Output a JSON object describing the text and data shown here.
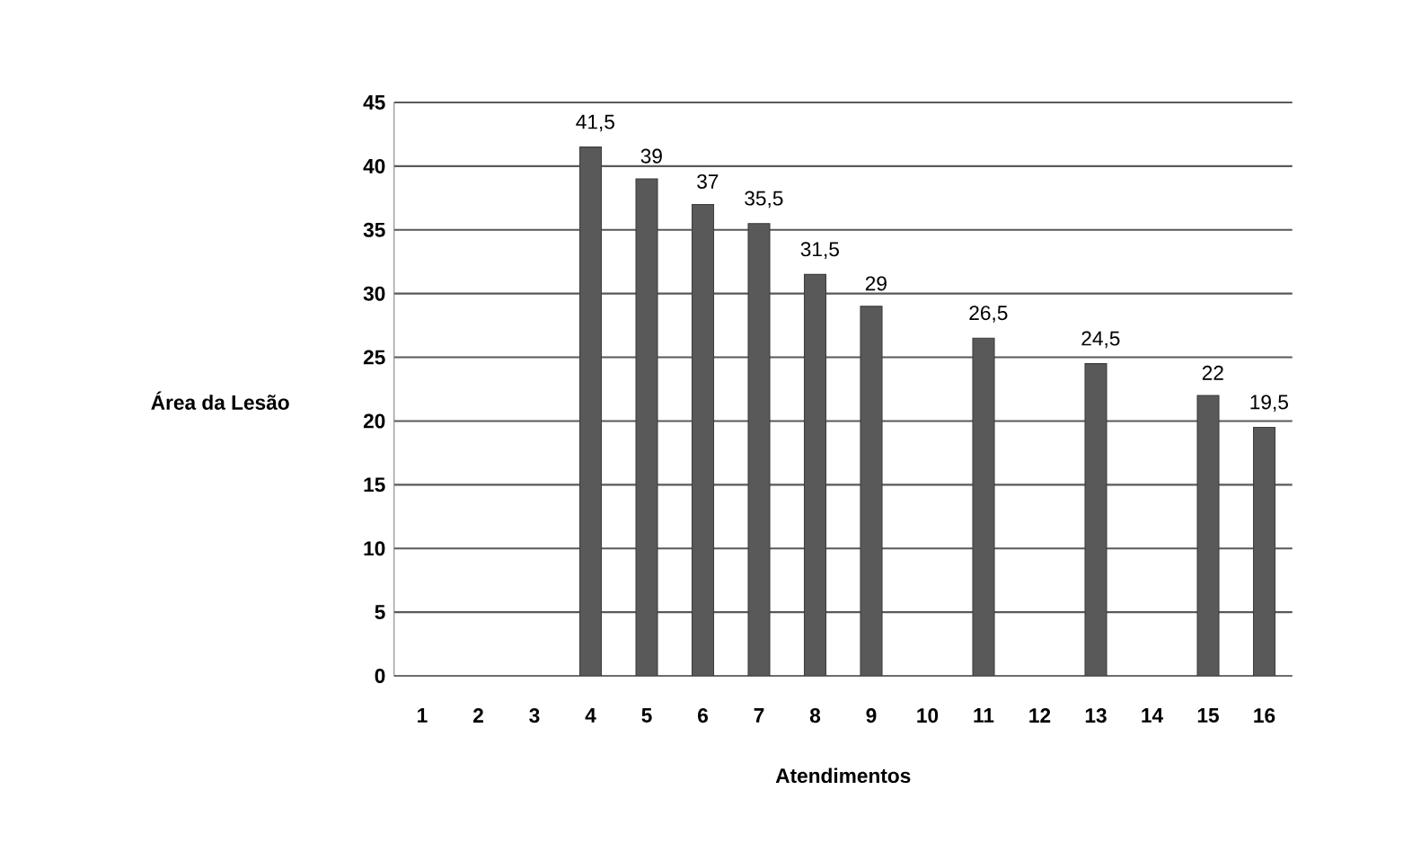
{
  "chart_data": {
    "type": "bar",
    "xlabel": "Atendimentos",
    "ylabel": "Área da Lesão",
    "categories": [
      "1",
      "2",
      "3",
      "4",
      "5",
      "6",
      "7",
      "8",
      "9",
      "10",
      "11",
      "12",
      "13",
      "14",
      "15",
      "16"
    ],
    "values": [
      null,
      null,
      null,
      41.5,
      39,
      37,
      35.5,
      31.5,
      29,
      null,
      26.5,
      null,
      24.5,
      null,
      22,
      19.5
    ],
    "value_labels": [
      null,
      null,
      null,
      "41,5",
      "39",
      "37",
      "35,5",
      "31,5",
      "29",
      null,
      "26,5",
      null,
      "24,5",
      null,
      "22",
      "19,5"
    ],
    "color": "#595959",
    "ylim": [
      0,
      45
    ],
    "yticks": [
      0,
      5,
      10,
      15,
      20,
      25,
      30,
      35,
      40,
      45
    ],
    "grid": "y"
  }
}
